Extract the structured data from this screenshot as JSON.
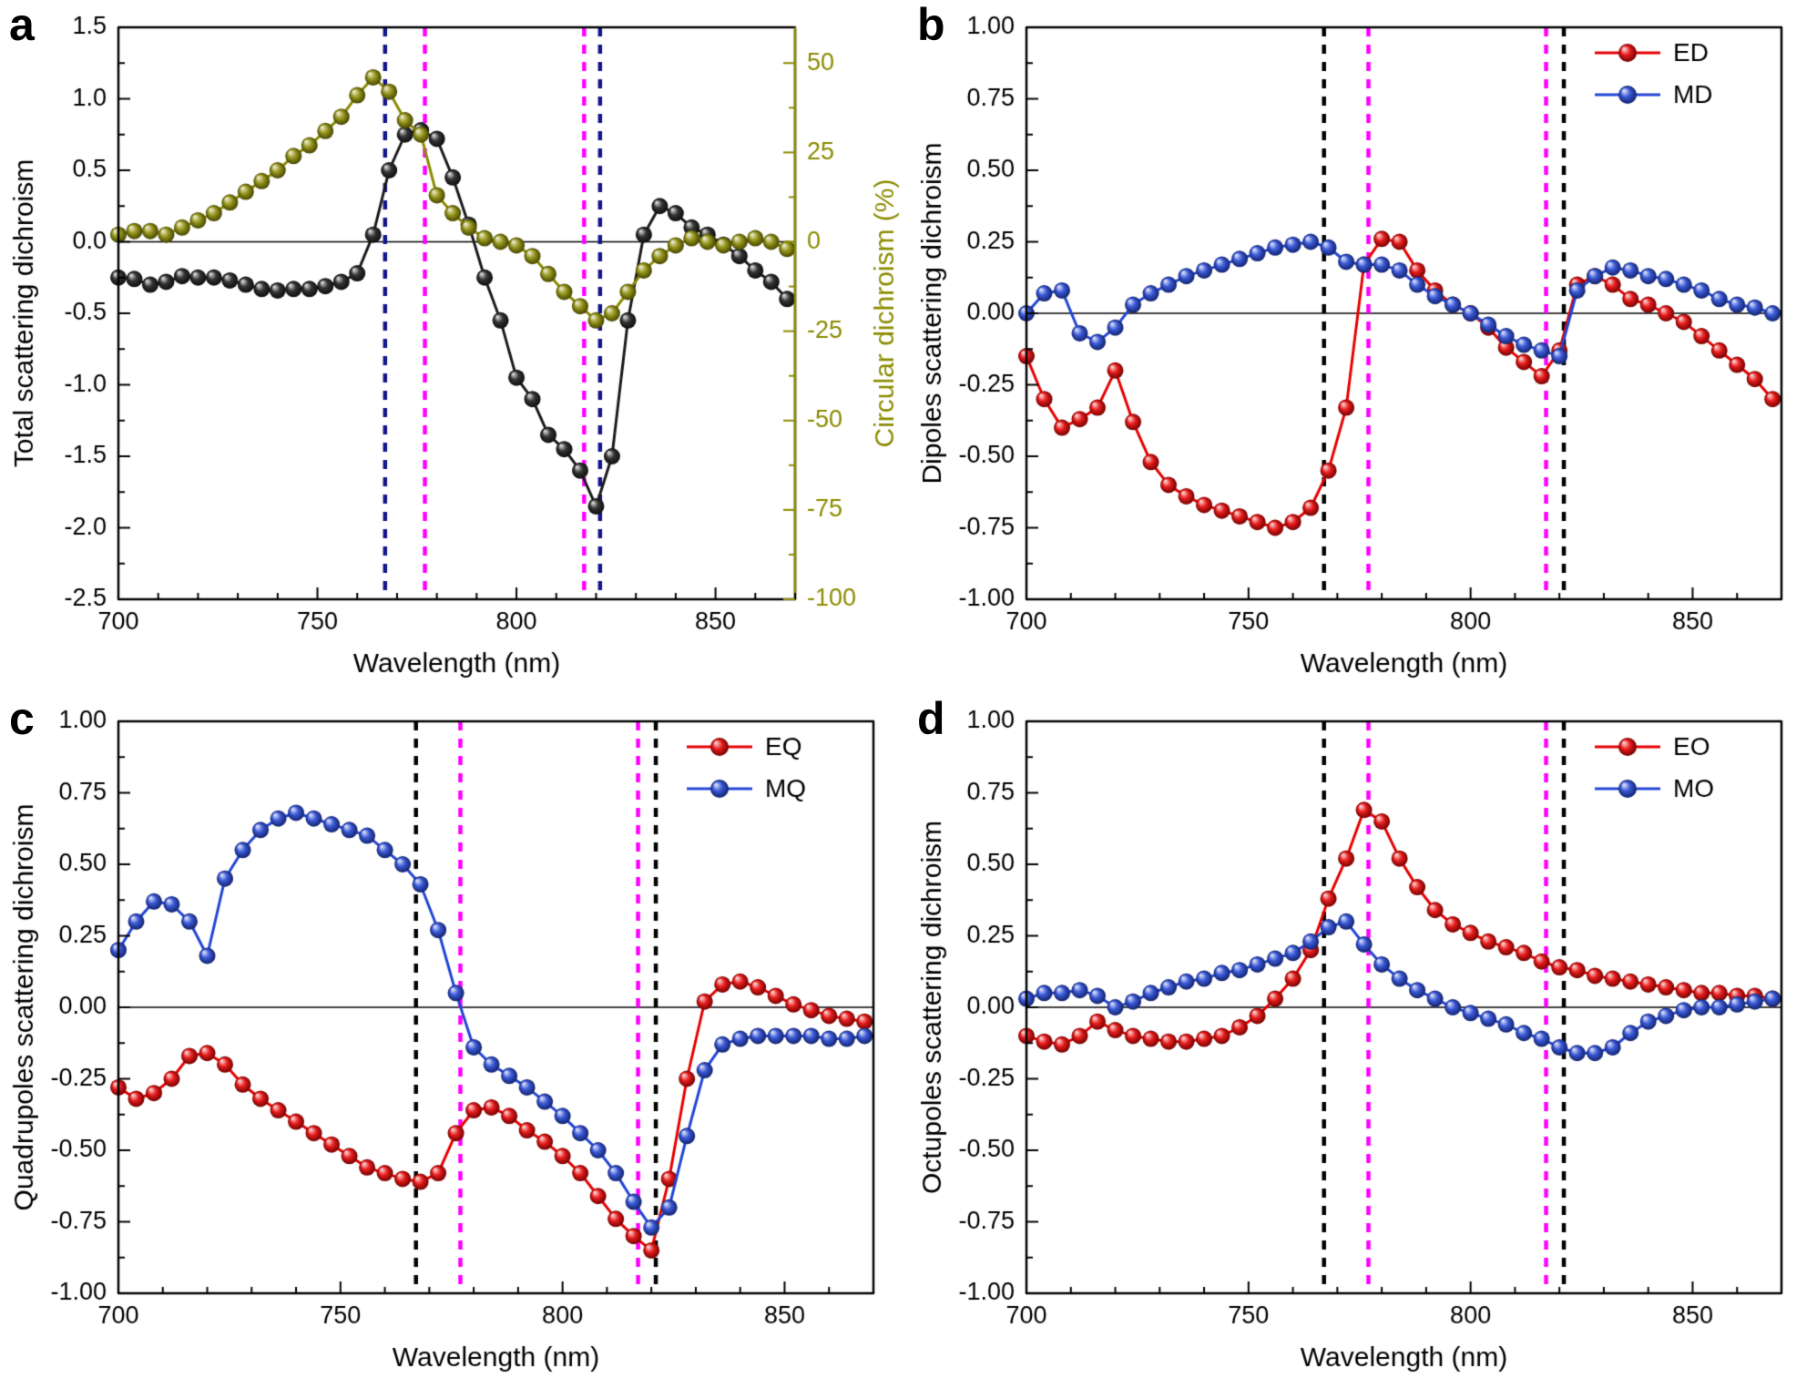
{
  "figure": {
    "background": "#ffffff"
  },
  "colors": {
    "red": "#e60000",
    "blue": "#2244d4",
    "black_series": "#1a1a1a",
    "olive": "#8b8b00",
    "magenta": "#ff00ff",
    "navy": "#14148c"
  },
  "chart_data": [
    {
      "type": "line",
      "panel_label": "a",
      "xlabel": "Wavelength (nm)",
      "ylabel": "Total scattering dichroism",
      "y2label": "Circular dichroism (%)",
      "xlim": [
        700,
        870
      ],
      "xticks": [
        700,
        750,
        800,
        850
      ],
      "ylim": [
        -2.5,
        1.5
      ],
      "yticks": [
        1.5,
        1.0,
        0.5,
        0.0,
        -0.5,
        -1.0,
        -1.5,
        -2.0,
        -2.5
      ],
      "ytick_decimals": 1,
      "y2lim": [
        -100,
        60
      ],
      "y2ticks": [
        50,
        25,
        0,
        -25,
        -50,
        -75,
        -100
      ],
      "y2color": "#8b8b00",
      "zero_line": true,
      "vlines": [
        {
          "x": 767,
          "color": "#14148c"
        },
        {
          "x": 777,
          "color": "#ff00ff"
        },
        {
          "x": 817,
          "color": "#ff00ff"
        },
        {
          "x": 821,
          "color": "#14148c"
        }
      ],
      "x": [
        700,
        704,
        708,
        712,
        716,
        720,
        724,
        728,
        732,
        736,
        740,
        744,
        748,
        752,
        756,
        760,
        764,
        768,
        772,
        776,
        780,
        784,
        788,
        792,
        796,
        800,
        804,
        808,
        812,
        816,
        820,
        824,
        828,
        832,
        836,
        840,
        844,
        848,
        852,
        856,
        860,
        864,
        868
      ],
      "series": [
        {
          "name": "Total scattering dichroism",
          "color": "#1a1a1a",
          "axis": "y",
          "values": [
            -0.25,
            -0.26,
            -0.3,
            -0.28,
            -0.24,
            -0.25,
            -0.25,
            -0.27,
            -0.3,
            -0.33,
            -0.34,
            -0.33,
            -0.33,
            -0.31,
            -0.28,
            -0.22,
            0.05,
            0.5,
            0.75,
            0.78,
            0.72,
            0.45,
            0.12,
            -0.25,
            -0.55,
            -0.95,
            -1.1,
            -1.35,
            -1.45,
            -1.6,
            -1.85,
            -1.5,
            -0.55,
            0.05,
            0.25,
            0.2,
            0.1,
            0.05,
            -0.02,
            -0.1,
            -0.2,
            -0.28,
            -0.4
          ]
        },
        {
          "name": "Circular dichroism (%)",
          "color": "#8b8b00",
          "axis": "y2",
          "values": [
            2,
            3,
            3,
            2,
            4,
            6,
            8,
            11,
            14,
            17,
            20,
            24,
            27,
            31,
            35,
            41,
            46,
            42,
            34,
            30,
            13,
            8,
            4,
            1,
            0,
            -1,
            -4,
            -9,
            -14,
            -18,
            -22,
            -20,
            -14,
            -8,
            -4,
            -1,
            1,
            0,
            -1,
            0,
            1,
            0,
            -2
          ]
        }
      ],
      "legend": null
    },
    {
      "type": "line",
      "panel_label": "b",
      "xlabel": "Wavelength (nm)",
      "ylabel": "Dipoles scattering dichroism",
      "xlim": [
        700,
        870
      ],
      "xticks": [
        700,
        750,
        800,
        850
      ],
      "ylim": [
        -1.0,
        1.0
      ],
      "yticks": [
        1.0,
        0.75,
        0.5,
        0.25,
        0.0,
        -0.25,
        -0.5,
        -0.75,
        -1.0
      ],
      "ytick_decimals": 2,
      "zero_line": true,
      "vlines": [
        {
          "x": 767,
          "color": "#000000"
        },
        {
          "x": 777,
          "color": "#ff00ff"
        },
        {
          "x": 817,
          "color": "#ff00ff"
        },
        {
          "x": 821,
          "color": "#000000"
        }
      ],
      "x": [
        700,
        704,
        708,
        712,
        716,
        720,
        724,
        728,
        732,
        736,
        740,
        744,
        748,
        752,
        756,
        760,
        764,
        768,
        772,
        776,
        780,
        784,
        788,
        792,
        796,
        800,
        804,
        808,
        812,
        816,
        820,
        824,
        828,
        832,
        836,
        840,
        844,
        848,
        852,
        856,
        860,
        864,
        868
      ],
      "series": [
        {
          "name": "ED",
          "color": "#e60000",
          "axis": "y",
          "values": [
            -0.15,
            -0.3,
            -0.4,
            -0.37,
            -0.33,
            -0.2,
            -0.38,
            -0.52,
            -0.6,
            -0.64,
            -0.67,
            -0.69,
            -0.71,
            -0.73,
            -0.75,
            -0.73,
            -0.68,
            -0.55,
            -0.33,
            0.17,
            0.26,
            0.25,
            0.15,
            0.08,
            0.03,
            0.0,
            -0.05,
            -0.12,
            -0.17,
            -0.22,
            -0.13,
            0.1,
            0.13,
            0.1,
            0.05,
            0.03,
            0.0,
            -0.03,
            -0.08,
            -0.13,
            -0.18,
            -0.23,
            -0.3
          ]
        },
        {
          "name": "MD",
          "color": "#2244d4",
          "axis": "y",
          "values": [
            0.0,
            0.07,
            0.08,
            -0.07,
            -0.1,
            -0.05,
            0.03,
            0.07,
            0.1,
            0.13,
            0.15,
            0.17,
            0.19,
            0.21,
            0.23,
            0.24,
            0.25,
            0.23,
            0.18,
            0.17,
            0.17,
            0.15,
            0.1,
            0.06,
            0.03,
            0.0,
            -0.04,
            -0.08,
            -0.11,
            -0.13,
            -0.15,
            0.08,
            0.13,
            0.16,
            0.15,
            0.13,
            0.12,
            0.1,
            0.08,
            0.05,
            0.03,
            0.02,
            0.0
          ]
        }
      ],
      "legend": {
        "position": "top-right",
        "items": [
          {
            "label": "ED",
            "color": "#e60000"
          },
          {
            "label": "MD",
            "color": "#2244d4"
          }
        ]
      }
    },
    {
      "type": "line",
      "panel_label": "c",
      "xlabel": "Wavelength (nm)",
      "ylabel": "Quadrupoles scattering dichroism",
      "xlim": [
        700,
        870
      ],
      "xticks": [
        700,
        750,
        800,
        850
      ],
      "ylim": [
        -1.0,
        1.0
      ],
      "yticks": [
        1.0,
        0.75,
        0.5,
        0.25,
        0.0,
        -0.25,
        -0.5,
        -0.75,
        -1.0
      ],
      "ytick_decimals": 2,
      "zero_line": true,
      "vlines": [
        {
          "x": 767,
          "color": "#000000"
        },
        {
          "x": 777,
          "color": "#ff00ff"
        },
        {
          "x": 817,
          "color": "#ff00ff"
        },
        {
          "x": 821,
          "color": "#000000"
        }
      ],
      "x": [
        700,
        704,
        708,
        712,
        716,
        720,
        724,
        728,
        732,
        736,
        740,
        744,
        748,
        752,
        756,
        760,
        764,
        768,
        772,
        776,
        780,
        784,
        788,
        792,
        796,
        800,
        804,
        808,
        812,
        816,
        820,
        824,
        828,
        832,
        836,
        840,
        844,
        848,
        852,
        856,
        860,
        864,
        868
      ],
      "series": [
        {
          "name": "EQ",
          "color": "#e60000",
          "axis": "y",
          "values": [
            -0.28,
            -0.32,
            -0.3,
            -0.25,
            -0.17,
            -0.16,
            -0.2,
            -0.27,
            -0.32,
            -0.36,
            -0.4,
            -0.44,
            -0.48,
            -0.52,
            -0.56,
            -0.58,
            -0.6,
            -0.61,
            -0.58,
            -0.44,
            -0.36,
            -0.35,
            -0.38,
            -0.43,
            -0.47,
            -0.52,
            -0.58,
            -0.66,
            -0.74,
            -0.8,
            -0.85,
            -0.6,
            -0.25,
            0.02,
            0.08,
            0.09,
            0.07,
            0.04,
            0.01,
            -0.01,
            -0.03,
            -0.04,
            -0.05
          ]
        },
        {
          "name": "MQ",
          "color": "#2244d4",
          "axis": "y",
          "values": [
            0.2,
            0.3,
            0.37,
            0.36,
            0.3,
            0.18,
            0.45,
            0.55,
            0.62,
            0.66,
            0.68,
            0.66,
            0.64,
            0.62,
            0.6,
            0.55,
            0.5,
            0.43,
            0.27,
            0.05,
            -0.14,
            -0.2,
            -0.24,
            -0.28,
            -0.33,
            -0.38,
            -0.44,
            -0.5,
            -0.58,
            -0.68,
            -0.77,
            -0.7,
            -0.45,
            -0.22,
            -0.13,
            -0.11,
            -0.1,
            -0.1,
            -0.1,
            -0.1,
            -0.11,
            -0.11,
            -0.1
          ]
        }
      ],
      "legend": {
        "position": "top-right",
        "items": [
          {
            "label": "EQ",
            "color": "#e60000"
          },
          {
            "label": "MQ",
            "color": "#2244d4"
          }
        ]
      }
    },
    {
      "type": "line",
      "panel_label": "d",
      "xlabel": "Wavelength (nm)",
      "ylabel": "Octupoles scattering dichroism",
      "xlim": [
        700,
        870
      ],
      "xticks": [
        700,
        750,
        800,
        850
      ],
      "ylim": [
        -1.0,
        1.0
      ],
      "yticks": [
        1.0,
        0.75,
        0.5,
        0.25,
        0.0,
        -0.25,
        -0.5,
        -0.75,
        -1.0
      ],
      "ytick_decimals": 2,
      "zero_line": true,
      "vlines": [
        {
          "x": 767,
          "color": "#000000"
        },
        {
          "x": 777,
          "color": "#ff00ff"
        },
        {
          "x": 817,
          "color": "#ff00ff"
        },
        {
          "x": 821,
          "color": "#000000"
        }
      ],
      "x": [
        700,
        704,
        708,
        712,
        716,
        720,
        724,
        728,
        732,
        736,
        740,
        744,
        748,
        752,
        756,
        760,
        764,
        768,
        772,
        776,
        780,
        784,
        788,
        792,
        796,
        800,
        804,
        808,
        812,
        816,
        820,
        824,
        828,
        832,
        836,
        840,
        844,
        848,
        852,
        856,
        860,
        864,
        868
      ],
      "series": [
        {
          "name": "EO",
          "color": "#e60000",
          "axis": "y",
          "values": [
            -0.1,
            -0.12,
            -0.13,
            -0.1,
            -0.05,
            -0.08,
            -0.1,
            -0.11,
            -0.12,
            -0.12,
            -0.11,
            -0.1,
            -0.07,
            -0.03,
            0.03,
            0.1,
            0.2,
            0.38,
            0.52,
            0.69,
            0.65,
            0.52,
            0.42,
            0.34,
            0.29,
            0.26,
            0.23,
            0.21,
            0.19,
            0.16,
            0.14,
            0.13,
            0.11,
            0.1,
            0.09,
            0.08,
            0.07,
            0.06,
            0.05,
            0.05,
            0.04,
            0.04,
            0.03
          ]
        },
        {
          "name": "MO",
          "color": "#2244d4",
          "axis": "y",
          "values": [
            0.03,
            0.05,
            0.05,
            0.06,
            0.04,
            0.0,
            0.02,
            0.05,
            0.07,
            0.09,
            0.1,
            0.12,
            0.13,
            0.15,
            0.17,
            0.19,
            0.23,
            0.28,
            0.3,
            0.22,
            0.15,
            0.1,
            0.06,
            0.03,
            0.0,
            -0.02,
            -0.04,
            -0.06,
            -0.09,
            -0.11,
            -0.14,
            -0.16,
            -0.16,
            -0.14,
            -0.09,
            -0.05,
            -0.03,
            -0.01,
            0.0,
            0.0,
            0.01,
            0.02,
            0.03
          ]
        }
      ],
      "legend": {
        "position": "top-right",
        "items": [
          {
            "label": "EO",
            "color": "#e60000"
          },
          {
            "label": "MO",
            "color": "#2244d4"
          }
        ]
      }
    }
  ]
}
